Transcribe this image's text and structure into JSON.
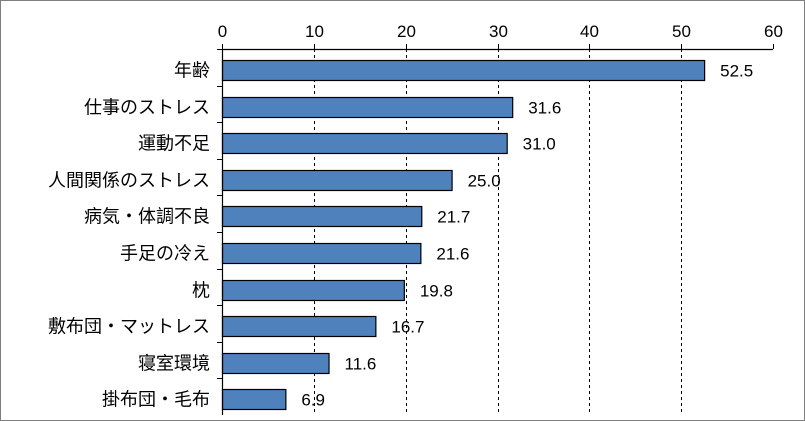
{
  "chart_data": {
    "type": "bar",
    "orientation": "horizontal",
    "categories": [
      "年齢",
      "仕事のストレス",
      "運動不足",
      "人間関係のストレス",
      "病気・体調不良",
      "手足の冷え",
      "枕",
      "敷布団・マットレス",
      "寝室環境",
      "掛布団・毛布"
    ],
    "values": [
      52.5,
      31.6,
      31.0,
      25.0,
      21.7,
      21.6,
      19.8,
      16.7,
      11.6,
      6.9
    ],
    "value_labels": [
      "52.5",
      "31.6",
      "31.0",
      "25.0",
      "21.7",
      "21.6",
      "19.8",
      "16.7",
      "11.6",
      "6.9"
    ],
    "xlim": [
      0,
      60
    ],
    "xticks": [
      0,
      10,
      20,
      30,
      40,
      50,
      60
    ],
    "x_axis_position": "top",
    "gridlines": "vertical-dashed",
    "legend": "none",
    "bar_color": "#4f81bd",
    "bar_border_color": "#000000"
  }
}
